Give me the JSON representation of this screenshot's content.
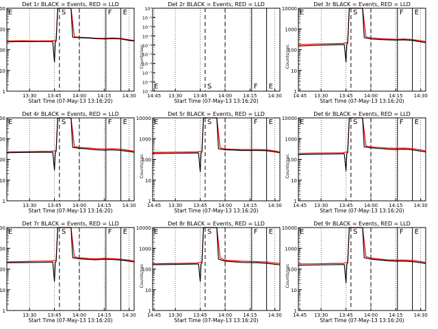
{
  "chart_data": {
    "type": "line",
    "panel_xlabel": "Start Time (07-May-13 13:16:20)",
    "panel_ylabel": "Counts/sec",
    "x_tick_labels": [
      "13:30",
      "13:45",
      "14:00",
      "14:15",
      "14:30",
      "14:45"
    ],
    "x_range_min": [
      16.33,
      93.0
    ],
    "x_tick_min": [
      30,
      45,
      60,
      75,
      90,
      105
    ],
    "marker_min": {
      "S": [
        48,
        60
      ],
      "F": [
        76,
        85
      ]
    },
    "marker_labels": [
      "E",
      "S",
      "F",
      "E"
    ],
    "y_log_tick_labels": [
      "1",
      "10",
      "100",
      "1000",
      "10000"
    ],
    "y_small_tick_labels": [
      "10⁻⁹",
      "10⁻⁸",
      "10⁻⁷",
      "10⁻⁶",
      "10⁻⁵",
      "10⁻⁴",
      "10⁻³",
      "10⁻²",
      "10⁻¹",
      "10⁰"
    ],
    "series_colors": {
      "events": "#000000",
      "lld": "#ff0000"
    },
    "panels": [
      {
        "title": "Det 1r BLACK = Events, RED = LLD",
        "scale": "log",
        "ylim": [
          1,
          10000
        ],
        "events": [
          [
            16.3,
            240
          ],
          [
            25,
            250
          ],
          [
            35,
            245
          ],
          [
            43,
            245
          ],
          [
            44,
            245
          ],
          [
            45,
            25
          ],
          [
            45.5,
            240
          ],
          [
            46,
            260
          ],
          [
            47,
            10000
          ],
          [
            55,
            10000
          ],
          [
            56,
            400
          ],
          [
            60,
            380
          ],
          [
            66,
            360
          ],
          [
            70,
            340
          ],
          [
            75,
            330
          ],
          [
            80,
            340
          ],
          [
            85,
            330
          ],
          [
            90,
            280
          ],
          [
            93,
            260
          ]
        ],
        "lld": [
          [
            16.3,
            260
          ],
          [
            25,
            270
          ],
          [
            35,
            265
          ],
          [
            43,
            270
          ],
          [
            46,
            280
          ],
          [
            47,
            10000
          ],
          [
            55,
            10000
          ],
          [
            57,
            420
          ],
          [
            60,
            400
          ],
          [
            66,
            380
          ],
          [
            70,
            360
          ],
          [
            75,
            350
          ],
          [
            80,
            370
          ],
          [
            85,
            350
          ],
          [
            90,
            300
          ],
          [
            93,
            280
          ]
        ]
      },
      {
        "title": "Det 2r BLACK = Events, RED = LLD",
        "scale": "small",
        "ylim": [
          1e-09,
          1
        ]
      },
      {
        "title": "Det 3r BLACK = Events, RED = LLD",
        "scale": "log",
        "ylim": [
          1,
          10000
        ],
        "events": [
          [
            16.3,
            150
          ],
          [
            25,
            160
          ],
          [
            35,
            170
          ],
          [
            43,
            175
          ],
          [
            44,
            175
          ],
          [
            45,
            25
          ],
          [
            45.5,
            180
          ],
          [
            46,
            200
          ],
          [
            47,
            10000
          ],
          [
            55,
            10000
          ],
          [
            56,
            380
          ],
          [
            60,
            330
          ],
          [
            66,
            310
          ],
          [
            70,
            300
          ],
          [
            75,
            290
          ],
          [
            80,
            300
          ],
          [
            85,
            280
          ],
          [
            90,
            240
          ],
          [
            93,
            220
          ]
        ],
        "lld": [
          [
            16.3,
            175
          ],
          [
            25,
            185
          ],
          [
            35,
            195
          ],
          [
            43,
            200
          ],
          [
            46,
            220
          ],
          [
            47,
            10000
          ],
          [
            55,
            10000
          ],
          [
            57,
            420
          ],
          [
            60,
            370
          ],
          [
            66,
            340
          ],
          [
            70,
            330
          ],
          [
            75,
            320
          ],
          [
            80,
            330
          ],
          [
            85,
            310
          ],
          [
            90,
            270
          ],
          [
            93,
            250
          ]
        ]
      },
      {
        "title": "Det 4r BLACK = Events, RED = LLD",
        "scale": "log",
        "ylim": [
          1,
          10000
        ],
        "events": [
          [
            16.3,
            210
          ],
          [
            25,
            215
          ],
          [
            35,
            220
          ],
          [
            43,
            220
          ],
          [
            44,
            220
          ],
          [
            45,
            30
          ],
          [
            45.5,
            220
          ],
          [
            46,
            240
          ],
          [
            47,
            10000
          ],
          [
            55,
            10000
          ],
          [
            56,
            380
          ],
          [
            60,
            340
          ],
          [
            66,
            310
          ],
          [
            70,
            290
          ],
          [
            75,
            280
          ],
          [
            80,
            290
          ],
          [
            85,
            270
          ],
          [
            90,
            240
          ],
          [
            93,
            220
          ]
        ],
        "lld": [
          [
            16.3,
            230
          ],
          [
            25,
            235
          ],
          [
            35,
            240
          ],
          [
            43,
            245
          ],
          [
            46,
            260
          ],
          [
            47,
            10000
          ],
          [
            55,
            10000
          ],
          [
            57,
            420
          ],
          [
            60,
            380
          ],
          [
            66,
            350
          ],
          [
            70,
            330
          ],
          [
            75,
            320
          ],
          [
            80,
            330
          ],
          [
            85,
            310
          ],
          [
            90,
            270
          ],
          [
            93,
            250
          ]
        ]
      },
      {
        "title": "Det 5r BLACK = Events, RED = LLD",
        "scale": "log",
        "ylim": [
          1,
          10000
        ],
        "events": [
          [
            16.3,
            190
          ],
          [
            25,
            195
          ],
          [
            35,
            200
          ],
          [
            43,
            205
          ],
          [
            44,
            205
          ],
          [
            45,
            25
          ],
          [
            45.5,
            205
          ],
          [
            46,
            220
          ],
          [
            47,
            10000
          ],
          [
            55,
            10000
          ],
          [
            56,
            320
          ],
          [
            60,
            290
          ],
          [
            66,
            280
          ],
          [
            70,
            270
          ],
          [
            75,
            270
          ],
          [
            80,
            270
          ],
          [
            85,
            260
          ],
          [
            90,
            230
          ],
          [
            93,
            210
          ]
        ],
        "lld": [
          [
            16.3,
            215
          ],
          [
            25,
            220
          ],
          [
            35,
            225
          ],
          [
            43,
            230
          ],
          [
            46,
            245
          ],
          [
            47,
            10000
          ],
          [
            55,
            10000
          ],
          [
            57,
            360
          ],
          [
            60,
            320
          ],
          [
            66,
            305
          ],
          [
            70,
            300
          ],
          [
            75,
            300
          ],
          [
            80,
            300
          ],
          [
            85,
            290
          ],
          [
            90,
            255
          ],
          [
            93,
            235
          ]
        ]
      },
      {
        "title": "Det 6r BLACK = Events, RED = LLD",
        "scale": "log",
        "ylim": [
          1,
          10000
        ],
        "events": [
          [
            16.3,
            170
          ],
          [
            25,
            175
          ],
          [
            35,
            180
          ],
          [
            43,
            185
          ],
          [
            44,
            185
          ],
          [
            45,
            28
          ],
          [
            45.5,
            190
          ],
          [
            46,
            210
          ],
          [
            47,
            10000
          ],
          [
            55,
            10000
          ],
          [
            56,
            400
          ],
          [
            60,
            360
          ],
          [
            66,
            330
          ],
          [
            70,
            310
          ],
          [
            75,
            300
          ],
          [
            80,
            310
          ],
          [
            85,
            290
          ],
          [
            90,
            250
          ],
          [
            93,
            230
          ]
        ],
        "lld": [
          [
            16.3,
            195
          ],
          [
            25,
            200
          ],
          [
            35,
            205
          ],
          [
            43,
            210
          ],
          [
            46,
            230
          ],
          [
            47,
            10000
          ],
          [
            55,
            10000
          ],
          [
            57,
            440
          ],
          [
            60,
            400
          ],
          [
            66,
            370
          ],
          [
            70,
            350
          ],
          [
            75,
            340
          ],
          [
            80,
            350
          ],
          [
            85,
            330
          ],
          [
            90,
            285
          ],
          [
            93,
            260
          ]
        ]
      },
      {
        "title": "Det 7r BLACK = Events, RED = LLD",
        "scale": "log",
        "ylim": [
          1,
          10000
        ],
        "events": [
          [
            16.3,
            200
          ],
          [
            25,
            205
          ],
          [
            35,
            210
          ],
          [
            43,
            215
          ],
          [
            44,
            215
          ],
          [
            45,
            25
          ],
          [
            45.5,
            215
          ],
          [
            46,
            230
          ],
          [
            47,
            10000
          ],
          [
            55,
            10000
          ],
          [
            56,
            350
          ],
          [
            60,
            310
          ],
          [
            66,
            290
          ],
          [
            70,
            280
          ],
          [
            75,
            300
          ],
          [
            80,
            290
          ],
          [
            85,
            270
          ],
          [
            90,
            240
          ],
          [
            93,
            220
          ]
        ],
        "lld": [
          [
            16.3,
            225
          ],
          [
            25,
            230
          ],
          [
            35,
            240
          ],
          [
            43,
            245
          ],
          [
            46,
            260
          ],
          [
            47,
            10000
          ],
          [
            55,
            10000
          ],
          [
            57,
            390
          ],
          [
            60,
            350
          ],
          [
            66,
            320
          ],
          [
            70,
            310
          ],
          [
            75,
            330
          ],
          [
            80,
            320
          ],
          [
            85,
            300
          ],
          [
            90,
            270
          ],
          [
            93,
            245
          ]
        ]
      },
      {
        "title": "Det 8r BLACK = Events, RED = LLD",
        "scale": "log",
        "ylim": [
          1,
          10000
        ],
        "events": [
          [
            16.3,
            160
          ],
          [
            25,
            165
          ],
          [
            35,
            170
          ],
          [
            43,
            175
          ],
          [
            44,
            175
          ],
          [
            45,
            25
          ],
          [
            45.5,
            175
          ],
          [
            46,
            190
          ],
          [
            47,
            10000
          ],
          [
            55,
            10000
          ],
          [
            56,
            300
          ],
          [
            60,
            240
          ],
          [
            66,
            220
          ],
          [
            70,
            210
          ],
          [
            75,
            205
          ],
          [
            80,
            200
          ],
          [
            85,
            190
          ],
          [
            90,
            170
          ],
          [
            93,
            160
          ]
        ],
        "lld": [
          [
            16.3,
            180
          ],
          [
            25,
            185
          ],
          [
            35,
            190
          ],
          [
            43,
            195
          ],
          [
            46,
            215
          ],
          [
            47,
            10000
          ],
          [
            55,
            10000
          ],
          [
            57,
            340
          ],
          [
            60,
            270
          ],
          [
            66,
            250
          ],
          [
            70,
            240
          ],
          [
            75,
            235
          ],
          [
            80,
            230
          ],
          [
            85,
            220
          ],
          [
            90,
            195
          ],
          [
            93,
            185
          ]
        ]
      },
      {
        "title": "Det 9r BLACK = Events, RED = LLD",
        "scale": "log",
        "ylim": [
          1,
          10000
        ],
        "events": [
          [
            16.3,
            150
          ],
          [
            25,
            155
          ],
          [
            35,
            160
          ],
          [
            43,
            165
          ],
          [
            44,
            165
          ],
          [
            45,
            22
          ],
          [
            45.5,
            170
          ],
          [
            46,
            190
          ],
          [
            47,
            10000
          ],
          [
            55,
            10000
          ],
          [
            56,
            350
          ],
          [
            60,
            300
          ],
          [
            66,
            270
          ],
          [
            70,
            250
          ],
          [
            75,
            240
          ],
          [
            80,
            240
          ],
          [
            85,
            230
          ],
          [
            90,
            200
          ],
          [
            93,
            185
          ]
        ],
        "lld": [
          [
            16.3,
            175
          ],
          [
            25,
            180
          ],
          [
            35,
            185
          ],
          [
            43,
            190
          ],
          [
            46,
            210
          ],
          [
            47,
            10000
          ],
          [
            55,
            10000
          ],
          [
            57,
            400
          ],
          [
            60,
            340
          ],
          [
            66,
            300
          ],
          [
            70,
            280
          ],
          [
            75,
            270
          ],
          [
            80,
            270
          ],
          [
            85,
            260
          ],
          [
            90,
            230
          ],
          [
            93,
            210
          ]
        ]
      }
    ]
  }
}
